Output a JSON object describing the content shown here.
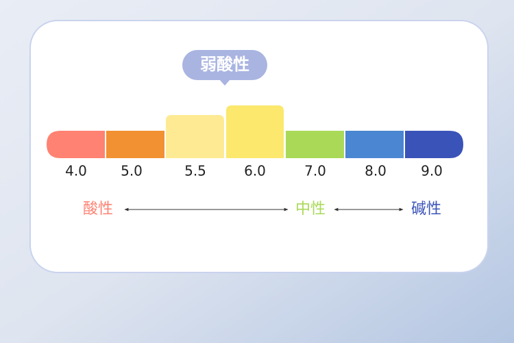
{
  "badge": "弱酸性",
  "scale": {
    "segments": [
      {
        "label": "4.0",
        "color": "#ff8272"
      },
      {
        "label": "5.0",
        "color": "#f19131"
      },
      {
        "label": "5.5",
        "color": "#fdea93"
      },
      {
        "label": "6.0",
        "color": "#fbe86c"
      },
      {
        "label": "7.0",
        "color": "#a9d957"
      },
      {
        "label": "8.0",
        "color": "#4a86d1"
      },
      {
        "label": "9.0",
        "color": "#3a53b9"
      }
    ]
  },
  "legend": {
    "acidic": {
      "text": "酸性",
      "color": "#ff8272"
    },
    "neutral": {
      "text": "中性",
      "color": "#a9d957"
    },
    "alkaline": {
      "text": "碱性",
      "color": "#3a53b9"
    }
  }
}
